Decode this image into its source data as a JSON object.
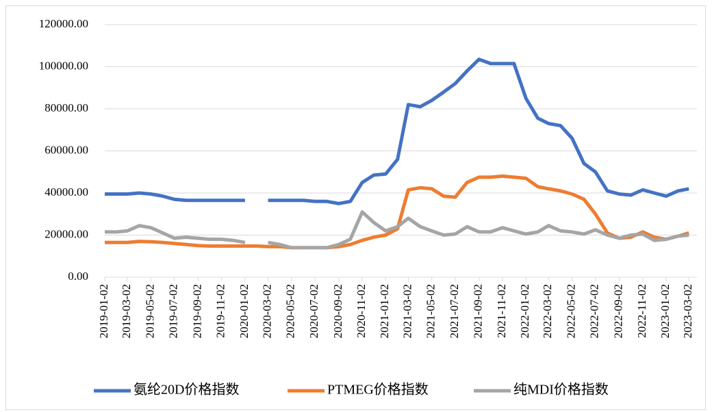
{
  "chart_data": {
    "type": "line",
    "x": [
      "2019-01-02",
      "2019-02-02",
      "2019-03-02",
      "2019-04-02",
      "2019-05-02",
      "2019-06-02",
      "2019-07-02",
      "2019-08-02",
      "2019-09-02",
      "2019-10-02",
      "2019-11-02",
      "2019-12-02",
      "2020-01-02",
      "2020-02-02",
      "2020-03-02",
      "2020-04-02",
      "2020-05-02",
      "2020-06-02",
      "2020-07-02",
      "2020-08-02",
      "2020-09-02",
      "2020-10-02",
      "2020-11-02",
      "2020-12-02",
      "2021-01-02",
      "2021-02-02",
      "2021-03-02",
      "2021-04-02",
      "2021-05-02",
      "2021-06-02",
      "2021-07-02",
      "2021-08-02",
      "2021-09-02",
      "2021-10-02",
      "2021-11-02",
      "2021-12-02",
      "2022-01-02",
      "2022-02-02",
      "2022-03-02",
      "2022-04-02",
      "2022-05-02",
      "2022-06-02",
      "2022-07-02",
      "2022-08-02",
      "2022-09-02",
      "2022-10-02",
      "2022-11-02",
      "2022-12-02",
      "2023-01-02",
      "2023-02-02",
      "2023-03-02"
    ],
    "series": [
      {
        "name": "氨纶20D价格指数",
        "color": "#4472c4",
        "values": [
          39500,
          39500,
          39500,
          40000,
          39500,
          38500,
          37000,
          36500,
          36500,
          36500,
          36500,
          36500,
          36500,
          null,
          36500,
          36500,
          36500,
          36500,
          36000,
          36000,
          35000,
          36000,
          45000,
          48500,
          49000,
          56000,
          82000,
          81000,
          84000,
          88000,
          92000,
          98000,
          103500,
          101500,
          101500,
          101500,
          85000,
          75500,
          73000,
          72000,
          66000,
          54000,
          50000,
          41000,
          39500,
          39000,
          41500,
          40000,
          38500,
          41000,
          42000
        ]
      },
      {
        "name": "PTMEG价格指数",
        "color": "#ed7d31",
        "values": [
          16500,
          16500,
          16500,
          17000,
          16800,
          16500,
          16000,
          15500,
          15000,
          14800,
          14800,
          14800,
          14800,
          14800,
          14500,
          14500,
          14000,
          14000,
          14000,
          14000,
          14500,
          15500,
          17500,
          19000,
          20000,
          23000,
          41500,
          42500,
          42000,
          38500,
          38000,
          45000,
          47500,
          47500,
          48000,
          47500,
          47000,
          43000,
          42000,
          41000,
          39500,
          37000,
          30000,
          21000,
          18500,
          19000,
          21500,
          19000,
          18000,
          19500,
          21000
        ]
      },
      {
        "name": "纯MDI价格指数",
        "color": "#a5a5a5",
        "values": [
          21500,
          21500,
          22000,
          24500,
          23500,
          21000,
          18500,
          19000,
          18500,
          18000,
          18000,
          17500,
          16500,
          null,
          16500,
          15500,
          14000,
          14000,
          14000,
          14000,
          15500,
          18000,
          31000,
          26000,
          22000,
          24000,
          28000,
          24000,
          22000,
          20000,
          20500,
          24000,
          21500,
          21500,
          23500,
          22000,
          20500,
          21500,
          24500,
          22000,
          21500,
          20500,
          22500,
          20000,
          18500,
          20000,
          20500,
          17500,
          18000,
          19500,
          20000
        ]
      }
    ],
    "xlim": [
      "2019-01-02",
      "2023-03-23"
    ],
    "xticks": [
      "2019-01-02",
      "2019-03-02",
      "2019-05-02",
      "2019-07-02",
      "2019-09-02",
      "2019-11-02",
      "2020-01-02",
      "2020-03-02",
      "2020-05-02",
      "2020-07-02",
      "2020-09-02",
      "2020-11-02",
      "2021-01-02",
      "2021-03-02",
      "2021-05-02",
      "2021-07-02",
      "2021-09-02",
      "2021-11-02",
      "2022-01-02",
      "2022-03-02",
      "2022-05-02",
      "2022-07-02",
      "2022-09-02",
      "2022-11-02",
      "2023-01-02",
      "2023-03-02"
    ],
    "ylim": [
      0,
      120000
    ],
    "yticks": [
      {
        "value": 0,
        "label": "0.00"
      },
      {
        "value": 20000,
        "label": "20000.00"
      },
      {
        "value": 40000,
        "label": "40000.00"
      },
      {
        "value": 60000,
        "label": "60000.00"
      },
      {
        "value": 80000,
        "label": "80000.00"
      },
      {
        "value": 100000,
        "label": "100000.00"
      },
      {
        "value": 120000,
        "label": "120000.00"
      }
    ],
    "grid": true,
    "legend": "bottom"
  }
}
